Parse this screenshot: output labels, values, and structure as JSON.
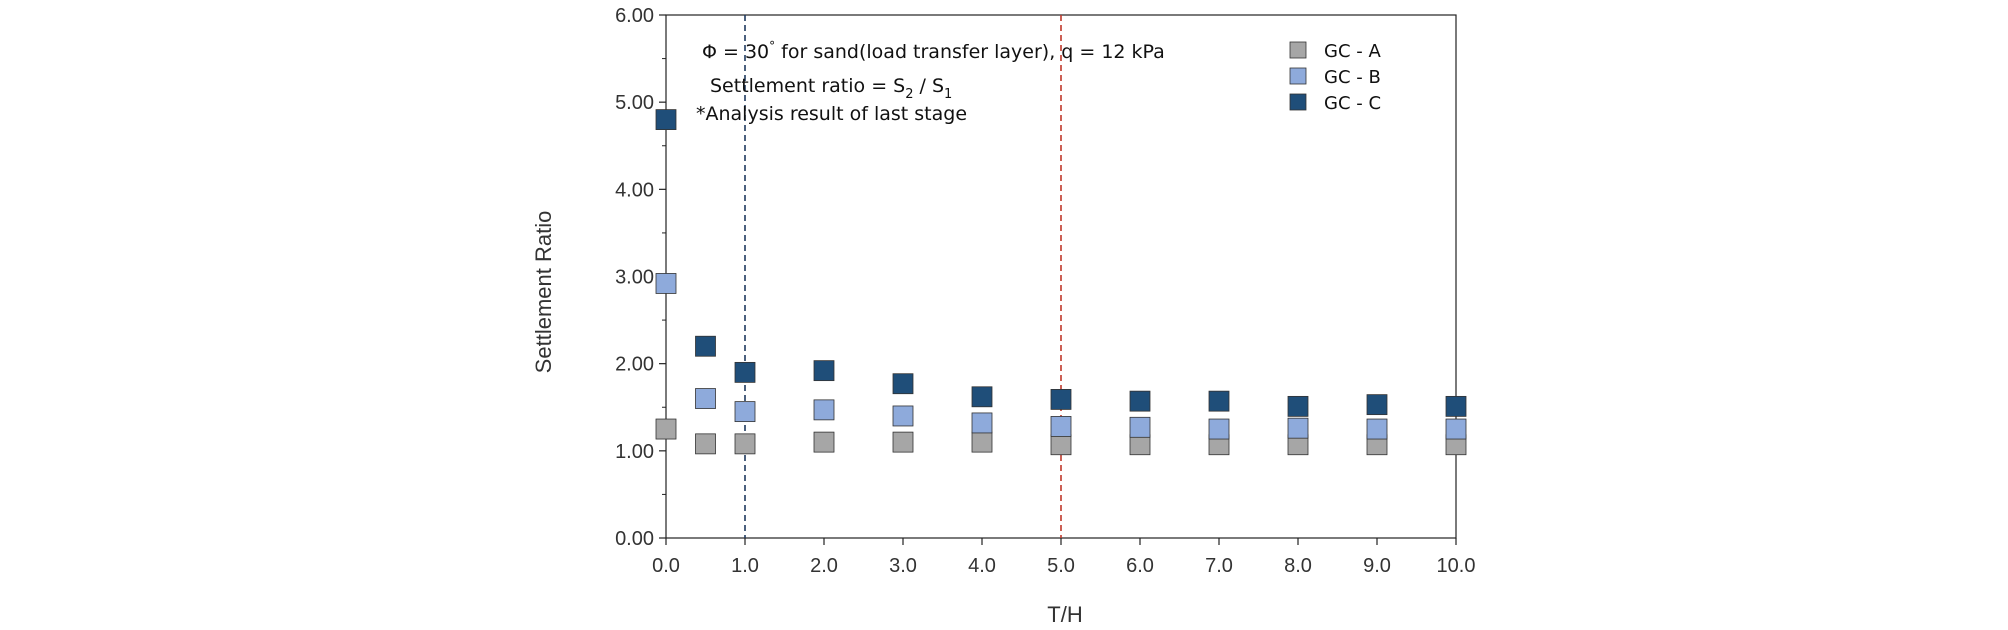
{
  "chart_data": {
    "type": "scatter",
    "xlabel": "T/H",
    "ylabel": "Settlement  Ratio",
    "xlim": [
      0,
      10
    ],
    "ylim": [
      0,
      6
    ],
    "x_ticks": [
      0,
      1,
      2,
      3,
      4,
      5,
      6,
      7,
      8,
      9,
      10
    ],
    "x_tick_labels": [
      "0.0",
      "1.0",
      "2.0",
      "3.0",
      "4.0",
      "5.0",
      "6.0",
      "7.0",
      "8.0",
      "9.0",
      "10.0"
    ],
    "y_ticks": [
      0,
      1,
      2,
      3,
      4,
      5,
      6
    ],
    "y_tick_labels": [
      "0.00",
      "1.00",
      "2.00",
      "3.00",
      "4.00",
      "5.00",
      "6.00"
    ],
    "x": [
      0,
      0.5,
      1,
      2,
      3,
      4,
      5,
      6,
      7,
      8,
      9,
      10
    ],
    "grid": false,
    "legend_position": "top-right",
    "reference_lines": [
      {
        "axis": "x",
        "value": 1,
        "style": "dashed",
        "color": "#1f3a5f"
      },
      {
        "axis": "x",
        "value": 5,
        "style": "dashed",
        "color": "#c0392b"
      }
    ],
    "series": [
      {
        "name": "GC - A",
        "color": "#a6a6a6",
        "values": [
          1.25,
          1.08,
          1.08,
          1.1,
          1.1,
          1.1,
          1.07,
          1.07,
          1.07,
          1.07,
          1.07,
          1.07
        ]
      },
      {
        "name": "GC - B",
        "color": "#8eaadb",
        "values": [
          2.92,
          1.6,
          1.45,
          1.47,
          1.4,
          1.32,
          1.28,
          1.27,
          1.25,
          1.26,
          1.25,
          1.25
        ]
      },
      {
        "name": "GC - C",
        "color": "#1f4e79",
        "values": [
          4.8,
          2.2,
          1.9,
          1.92,
          1.77,
          1.62,
          1.59,
          1.57,
          1.57,
          1.51,
          1.53,
          1.51
        ]
      }
    ],
    "annotations": {
      "line1": {
        "prefix": "Φ = 30",
        "degree": "°",
        "suffix": " for sand(load transfer layer),   q = 12 kPa"
      },
      "line2": {
        "prefix": "Settlement ratio =  S",
        "sub1": "2",
        "mid": " / S",
        "sub2": "1"
      },
      "line3": "*Analysis result of  last stage"
    }
  }
}
